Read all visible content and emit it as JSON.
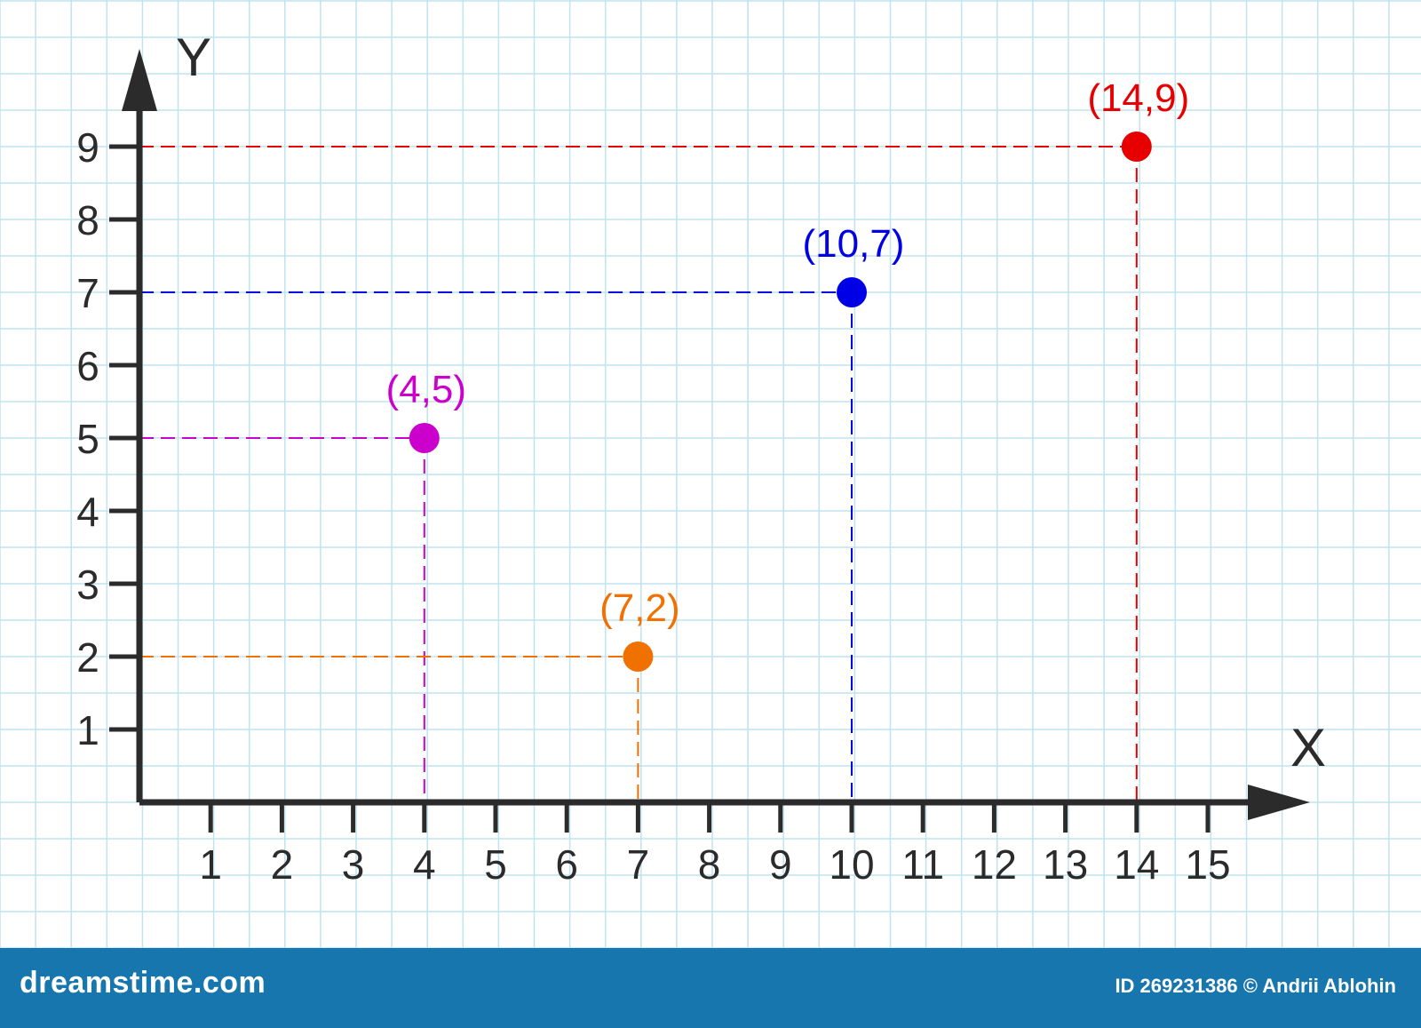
{
  "chart_data": {
    "type": "scatter",
    "title": "",
    "xlabel": "X",
    "ylabel": "Y",
    "xlim": [
      0,
      15
    ],
    "ylim": [
      0,
      9
    ],
    "x_ticks": [
      1,
      2,
      3,
      4,
      5,
      6,
      7,
      8,
      9,
      10,
      11,
      12,
      13,
      14,
      15
    ],
    "y_ticks": [
      1,
      2,
      3,
      4,
      5,
      6,
      7,
      8,
      9
    ],
    "grid": true,
    "points": [
      {
        "x": 4,
        "y": 5,
        "label": "(4,5)",
        "color": "#cc00cc"
      },
      {
        "x": 7,
        "y": 2,
        "label": "(7,2)",
        "color": "#f07000"
      },
      {
        "x": 10,
        "y": 7,
        "label": "(10,7)",
        "color": "#0000e6"
      },
      {
        "x": 14,
        "y": 9,
        "label": "(14,9)",
        "color": "#e60000"
      }
    ],
    "projection_lines": "dashed"
  },
  "colors": {
    "grid": "#bfe3ef",
    "axis": "#2b2b2b",
    "footer": "#1776ae"
  },
  "footer": {
    "brand": "dreamstime.com",
    "credit": "ID 269231386 © Andrii Ablohin"
  }
}
